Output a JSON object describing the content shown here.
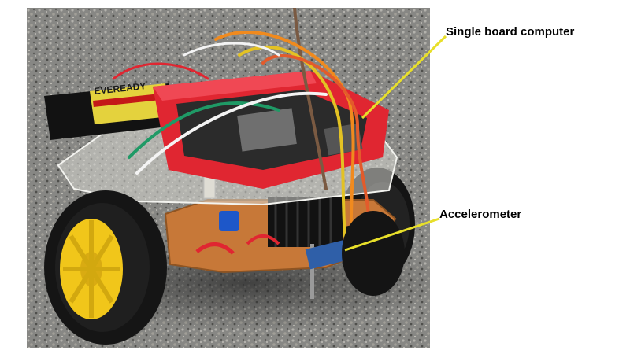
{
  "labels": {
    "single_board_computer": "Single board computer",
    "accelerometer": "Accelerometer"
  },
  "photo": {
    "battery_text": "EVEREADY"
  },
  "colors": {
    "callout_line": "#e8df2a",
    "chassis_red": "#e02631",
    "wheel_yellow": "#f1c61a",
    "tire": "#161616",
    "asphalt": "#8a8a86"
  }
}
